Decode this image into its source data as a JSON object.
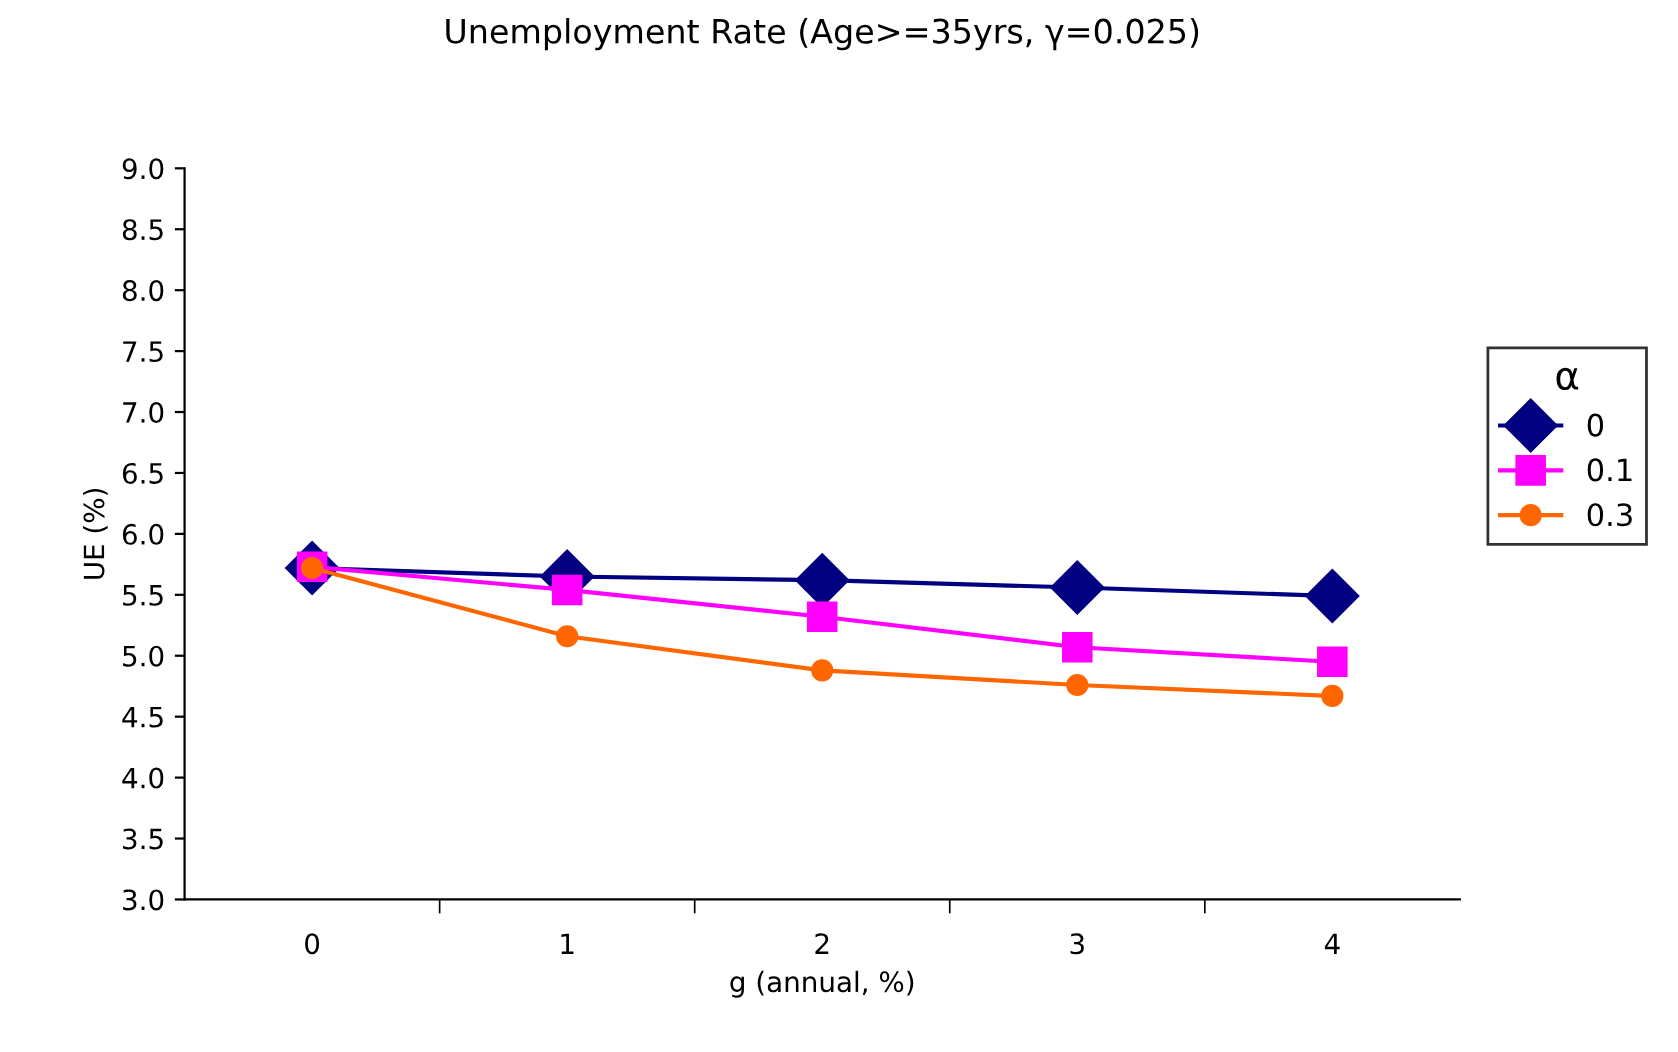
{
  "chart_data": {
    "type": "line",
    "title": "Unemployment Rate (Age>=35yrs, γ=0.025)",
    "xlabel": "g (annual, %)",
    "ylabel": "UE (%)",
    "legend_title": "α",
    "categories": [
      "0",
      "1",
      "2",
      "3",
      "4"
    ],
    "series": [
      {
        "name": "0",
        "color": "#000080",
        "marker": "diamond",
        "values": [
          5.72,
          5.65,
          5.62,
          5.56,
          5.49
        ]
      },
      {
        "name": "0.1",
        "color": "#ff00ff",
        "marker": "square",
        "values": [
          5.73,
          5.54,
          5.32,
          5.07,
          4.95
        ]
      },
      {
        "name": "0.3",
        "color": "#ff6600",
        "marker": "circle",
        "values": [
          5.72,
          5.16,
          4.88,
          4.76,
          4.67
        ]
      }
    ],
    "ylim": [
      3.0,
      9.0
    ],
    "yticks": [
      {
        "value": 3.0,
        "label": "3.0"
      },
      {
        "value": 3.5,
        "label": "3.5"
      },
      {
        "value": 4.0,
        "label": "4.0"
      },
      {
        "value": 4.5,
        "label": "4.5"
      },
      {
        "value": 5.0,
        "label": "5.0"
      },
      {
        "value": 5.5,
        "label": "5.5"
      },
      {
        "value": 6.0,
        "label": "6.0"
      },
      {
        "value": 6.5,
        "label": "6.5"
      },
      {
        "value": 7.0,
        "label": "7.0"
      },
      {
        "value": 7.5,
        "label": "7.5"
      },
      {
        "value": 8.0,
        "label": "8.0"
      },
      {
        "value": 8.5,
        "label": "8.5"
      },
      {
        "value": 9.0,
        "label": "9.0"
      }
    ],
    "grid": false,
    "legend": "right",
    "line_style": "solid"
  }
}
